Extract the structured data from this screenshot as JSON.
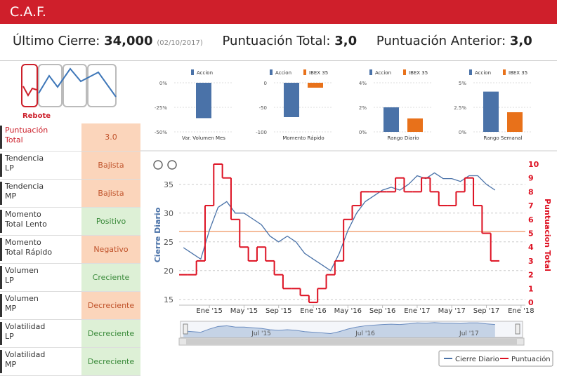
{
  "header": {
    "title": "C.A.F."
  },
  "summary": {
    "items": [
      {
        "label": "Último Cierre:",
        "value": "34,000",
        "date": "(02/10/2017)"
      },
      {
        "label": "Puntuación Total:",
        "value": "3,0"
      },
      {
        "label": "Puntuación Anterior:",
        "value": "3,0"
      }
    ]
  },
  "signal": {
    "label": "Rebote"
  },
  "indicators": [
    {
      "label": [
        "Puntuación",
        "Total"
      ],
      "value": "3.0",
      "color": "#fbd5bb",
      "text_color": "#c0532b",
      "label_color": "#cc1f2a"
    },
    {
      "label": [
        "Tendencia",
        "LP"
      ],
      "value": "Bajista",
      "color": "#fbd5bb",
      "text_color": "#c0532b"
    },
    {
      "label": [
        "Tendencia",
        "MP"
      ],
      "value": "Bajista",
      "color": "#fbd5bb",
      "text_color": "#c0532b"
    },
    {
      "label": [
        "Momento",
        "Total Lento"
      ],
      "value": "Positivo",
      "color": "#ddf0d6",
      "text_color": "#3a8a3a"
    },
    {
      "label": [
        "Momento",
        "Total Rápido"
      ],
      "value": "Negativo",
      "color": "#fbd5bb",
      "text_color": "#c0532b"
    },
    {
      "label": [
        "Volumen",
        "LP"
      ],
      "value": "Creciente",
      "color": "#ddf0d6",
      "text_color": "#3a8a3a"
    },
    {
      "label": [
        "Volumen",
        "MP"
      ],
      "value": "Decreciente",
      "color": "#fbd5bb",
      "text_color": "#c0532b"
    },
    {
      "label": [
        "Volatilidad",
        "LP"
      ],
      "value": "Decreciente",
      "color": "#ddf0d6",
      "text_color": "#3a8a3a"
    },
    {
      "label": [
        "Volatilidad",
        "MP"
      ],
      "value": "Decreciente",
      "color": "#ddf0d6",
      "text_color": "#3a8a3a"
    }
  ],
  "chart_data": [
    {
      "type": "bar",
      "xlabel": "Var. Volumen Mes",
      "series": [
        {
          "name": "Accion",
          "color": "#4a72a8",
          "values": [
            -36
          ]
        }
      ],
      "ylim": [
        -50,
        0
      ],
      "yticks": [
        {
          "value": 0,
          "label": "0%"
        },
        {
          "value": -25,
          "label": "-25%"
        },
        {
          "value": -50,
          "label": "-50%"
        }
      ]
    },
    {
      "type": "bar",
      "xlabel": "Momento Rápido",
      "series": [
        {
          "name": "Accion",
          "color": "#4a72a8",
          "values": [
            -70
          ]
        },
        {
          "name": "IBEX 35",
          "color": "#e8711a",
          "values": [
            -10
          ]
        }
      ],
      "ylim": [
        -100,
        0
      ],
      "yticks": [
        0,
        -50,
        -100
      ]
    },
    {
      "type": "bar",
      "xlabel": "Rango Diario",
      "series": [
        {
          "name": "Accion",
          "color": "#4a72a8",
          "values": [
            2.0
          ]
        },
        {
          "name": "IBEX 35",
          "color": "#e8711a",
          "values": [
            1.1
          ]
        }
      ],
      "ylim": [
        0,
        4
      ],
      "yticks": [
        {
          "value": 4,
          "label": "4%"
        },
        {
          "value": 2,
          "label": "2%"
        },
        {
          "value": 0,
          "label": "0%"
        }
      ]
    },
    {
      "type": "bar",
      "xlabel": "Rango Semanal",
      "series": [
        {
          "name": "Accion",
          "color": "#4a72a8",
          "values": [
            4.1
          ]
        },
        {
          "name": "IBEX 35",
          "color": "#e8711a",
          "values": [
            2.0
          ]
        }
      ],
      "ylim": [
        0,
        5
      ],
      "yticks": [
        {
          "value": 5,
          "label": "5%"
        },
        {
          "value": 2.5,
          "label": "2.5%"
        },
        {
          "value": 0,
          "label": "0%"
        }
      ]
    },
    {
      "type": "line",
      "ylabel": "Cierre Diario",
      "y2label": "Puntuacion Total",
      "categories": [
        null,
        null,
        null,
        "Ene '15",
        null,
        null,
        null,
        "May '15",
        null,
        null,
        null,
        "Sep '15",
        null,
        null,
        null,
        "Ene '16",
        null,
        null,
        null,
        "May '16",
        null,
        null,
        null,
        "Sep '16",
        null,
        null,
        null,
        "Ene '17",
        null,
        null,
        null,
        "May '17",
        null,
        null,
        null,
        "Sep '17",
        null,
        null,
        null,
        "Ene '18"
      ],
      "series": [
        {
          "name": "Cierre Diario",
          "color": "#4a72a8",
          "values": [
            24,
            23,
            22,
            27,
            31,
            32,
            30,
            30,
            29,
            28,
            26,
            25,
            26,
            25,
            23,
            22,
            21,
            20,
            23,
            27,
            30,
            32,
            33,
            34,
            34.5,
            34,
            35,
            36.5,
            36,
            37,
            36,
            36,
            35.5,
            36.5,
            36.5,
            35,
            34,
            null,
            null,
            null
          ]
        },
        {
          "name": "Puntuación",
          "color": "#dd1122",
          "axis": "y2",
          "step": true,
          "values": [
            2,
            2,
            3,
            7,
            10,
            9,
            6,
            4,
            3,
            4,
            3,
            2,
            1,
            1,
            0.5,
            0,
            1,
            2,
            3,
            6,
            7,
            8,
            8,
            8,
            8,
            9,
            8,
            8,
            9,
            8,
            7,
            7,
            8,
            9,
            7,
            5,
            3,
            null,
            null,
            null
          ]
        }
      ],
      "ylim": [
        14,
        39
      ],
      "yticks": [
        15,
        20,
        25,
        30,
        35
      ],
      "y2lim": [
        -0.2,
        10.2
      ],
      "y2ticks": [
        0,
        1,
        2,
        3,
        4,
        5,
        6,
        7,
        8,
        9,
        10
      ],
      "grid": true,
      "reference_line": {
        "value": 26.8,
        "color": "#f2a57a"
      },
      "navigator": {
        "categories": [
          null,
          null,
          null,
          null,
          null,
          null,
          null,
          null,
          null,
          "Jul '15",
          null,
          null,
          null,
          null,
          null,
          null,
          null,
          null,
          null,
          null,
          null,
          "Jul '16",
          null,
          null,
          null,
          null,
          null,
          null,
          null,
          null,
          null,
          null,
          null,
          "Jul '17",
          null,
          null,
          null,
          null,
          null,
          null
        ]
      },
      "legend": "bottom-right"
    }
  ]
}
